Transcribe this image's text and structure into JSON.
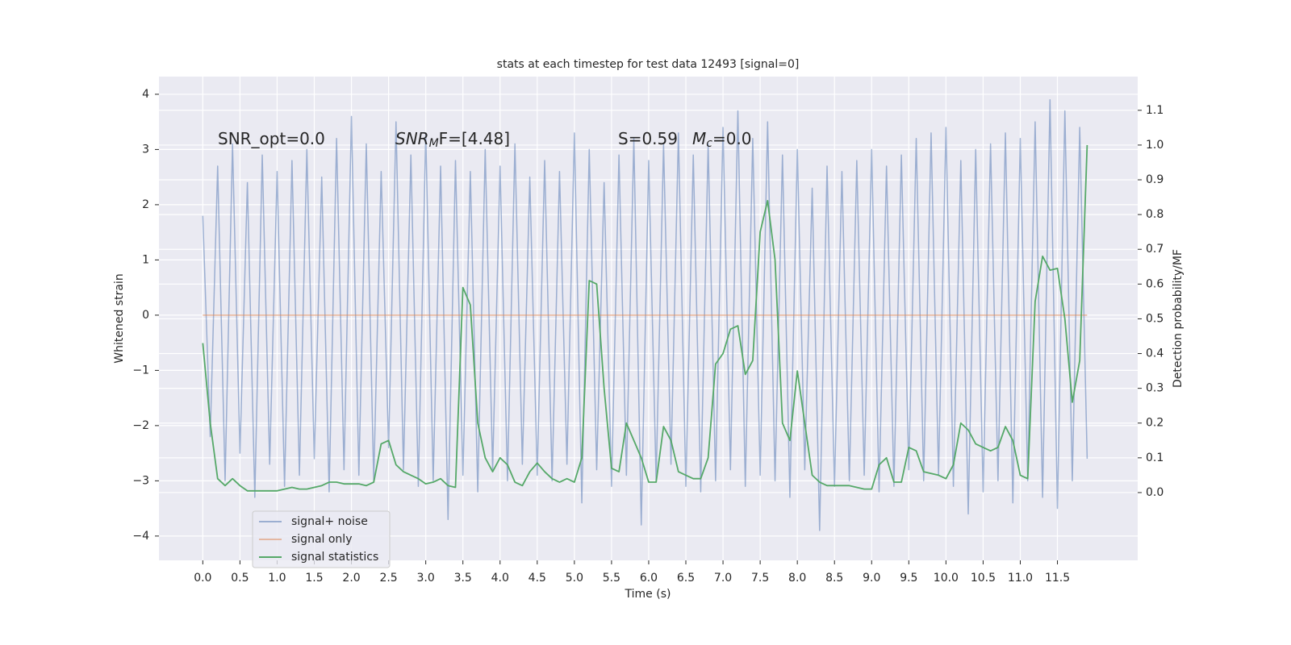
{
  "chart_data": {
    "type": "line",
    "title": "stats at each timestep for test data 12493 [signal=0]",
    "xlabel": "Time (s)",
    "ylabel": "Whitened strain",
    "y2label": "Detection probability/MF",
    "annotations": [
      [
        "SNR_opt=0.0"
      ],
      [
        "SNR",
        "M",
        "F=[4.48]"
      ],
      [
        "S=0.59"
      ],
      [
        "M",
        "c",
        "=0.0"
      ]
    ],
    "x": [
      0.0,
      0.1,
      0.2,
      0.3,
      0.4,
      0.5,
      0.6,
      0.7,
      0.8,
      0.9,
      1.0,
      1.1,
      1.2,
      1.3,
      1.4,
      1.5,
      1.6,
      1.7,
      1.8,
      1.9,
      2.0,
      2.1,
      2.2,
      2.3,
      2.4,
      2.5,
      2.6,
      2.7,
      2.8,
      2.9,
      3.0,
      3.1,
      3.2,
      3.3,
      3.4,
      3.5,
      3.6,
      3.7,
      3.8,
      3.9,
      4.0,
      4.1,
      4.2,
      4.3,
      4.4,
      4.5,
      4.6,
      4.7,
      4.8,
      4.9,
      5.0,
      5.1,
      5.2,
      5.3,
      5.4,
      5.5,
      5.6,
      5.7,
      5.8,
      5.9,
      6.0,
      6.1,
      6.2,
      6.3,
      6.4,
      6.5,
      6.6,
      6.7,
      6.8,
      6.9,
      7.0,
      7.1,
      7.2,
      7.3,
      7.4,
      7.5,
      7.6,
      7.7,
      7.8,
      7.9,
      8.0,
      8.1,
      8.2,
      8.3,
      8.4,
      8.5,
      8.6,
      8.7,
      8.8,
      8.9,
      9.0,
      9.1,
      9.2,
      9.3,
      9.4,
      9.5,
      9.6,
      9.7,
      9.8,
      9.9,
      10.0,
      10.1,
      10.2,
      10.3,
      10.4,
      10.5,
      10.6,
      10.7,
      10.8,
      10.9,
      11.0,
      11.1,
      11.2,
      11.3,
      11.4,
      11.5,
      11.6,
      11.7,
      11.8,
      11.9
    ],
    "series": [
      {
        "name": "signal+ noise",
        "color": "#4c72b0",
        "opacity": 0.5,
        "values": [
          1.8,
          -2.2,
          2.7,
          -3.0,
          3.1,
          -2.5,
          2.4,
          -3.3,
          2.9,
          -2.7,
          2.6,
          -3.1,
          2.8,
          -2.9,
          3.0,
          -2.6,
          2.5,
          -3.2,
          3.2,
          -2.8,
          3.6,
          -2.9,
          3.1,
          -3.0,
          2.6,
          -2.4,
          3.5,
          -2.8,
          2.9,
          -3.1,
          3.3,
          -3.0,
          2.7,
          -3.7,
          2.8,
          -2.9,
          2.6,
          -3.2,
          3.0,
          -2.8,
          2.7,
          -3.0,
          3.1,
          -2.7,
          2.5,
          -2.9,
          2.8,
          -3.0,
          2.6,
          -2.7,
          3.3,
          -3.4,
          3.0,
          -2.8,
          2.4,
          -3.1,
          2.9,
          -2.9,
          3.2,
          -3.8,
          2.8,
          -3.0,
          3.1,
          -2.7,
          3.3,
          -3.1,
          2.9,
          -3.2,
          3.1,
          -3.0,
          3.4,
          -2.8,
          3.7,
          -3.1,
          3.2,
          -2.9,
          3.5,
          -3.0,
          2.9,
          -3.3,
          3.0,
          -2.8,
          2.3,
          -3.9,
          2.7,
          -3.1,
          2.6,
          -3.0,
          2.8,
          -2.9,
          3.0,
          -3.2,
          2.7,
          -3.1,
          2.9,
          -2.8,
          3.2,
          -3.0,
          3.3,
          -2.9,
          3.4,
          -3.1,
          2.8,
          -3.6,
          3.0,
          -3.2,
          3.1,
          -3.0,
          3.3,
          -3.4,
          3.2,
          -3.0,
          3.5,
          -3.3,
          3.9,
          -3.5,
          3.7,
          -3.0,
          3.4,
          -2.6
        ]
      },
      {
        "name": "signal only",
        "color": "#dd8452",
        "opacity": 0.5,
        "values": [
          0,
          0,
          0,
          0,
          0,
          0,
          0,
          0,
          0,
          0,
          0,
          0,
          0,
          0,
          0,
          0,
          0,
          0,
          0,
          0,
          0,
          0,
          0,
          0,
          0,
          0,
          0,
          0,
          0,
          0,
          0,
          0,
          0,
          0,
          0,
          0,
          0,
          0,
          0,
          0,
          0,
          0,
          0,
          0,
          0,
          0,
          0,
          0,
          0,
          0,
          0,
          0,
          0,
          0,
          0,
          0,
          0,
          0,
          0,
          0,
          0,
          0,
          0,
          0,
          0,
          0,
          0,
          0,
          0,
          0,
          0,
          0,
          0,
          0,
          0,
          0,
          0,
          0,
          0,
          0,
          0,
          0,
          0,
          0,
          0,
          0,
          0,
          0,
          0,
          0,
          0,
          0,
          0,
          0,
          0,
          0,
          0,
          0,
          0,
          0,
          0,
          0,
          0,
          0,
          0,
          0,
          0,
          0,
          0,
          0,
          0,
          0,
          0,
          0,
          0,
          0,
          0,
          0,
          0,
          0
        ]
      },
      {
        "name": "signal statistics",
        "color": "#55a868",
        "opacity": 1,
        "axis": "y2",
        "values": [
          0.43,
          0.2,
          0.04,
          0.02,
          0.04,
          0.02,
          0.005,
          0.005,
          0.005,
          0.005,
          0.005,
          0.01,
          0.015,
          0.01,
          0.01,
          0.015,
          0.02,
          0.03,
          0.03,
          0.025,
          0.025,
          0.025,
          0.02,
          0.03,
          0.14,
          0.15,
          0.08,
          0.06,
          0.05,
          0.04,
          0.025,
          0.03,
          0.04,
          0.02,
          0.015,
          0.59,
          0.54,
          0.2,
          0.1,
          0.06,
          0.1,
          0.08,
          0.03,
          0.02,
          0.06,
          0.085,
          0.06,
          0.04,
          0.03,
          0.04,
          0.03,
          0.1,
          0.61,
          0.6,
          0.3,
          0.07,
          0.06,
          0.2,
          0.15,
          0.1,
          0.03,
          0.03,
          0.19,
          0.15,
          0.06,
          0.05,
          0.04,
          0.04,
          0.1,
          0.37,
          0.4,
          0.47,
          0.48,
          0.34,
          0.38,
          0.75,
          0.84,
          0.67,
          0.2,
          0.15,
          0.35,
          0.2,
          0.05,
          0.03,
          0.02,
          0.02,
          0.02,
          0.02,
          0.015,
          0.01,
          0.01,
          0.08,
          0.1,
          0.03,
          0.03,
          0.13,
          0.12,
          0.06,
          0.055,
          0.05,
          0.04,
          0.08,
          0.2,
          0.18,
          0.14,
          0.13,
          0.12,
          0.13,
          0.19,
          0.15,
          0.05,
          0.04,
          0.55,
          0.68,
          0.64,
          0.645,
          0.5,
          0.26,
          0.38,
          1.0
        ]
      }
    ],
    "xlim": [
      -0.59,
      12.58
    ],
    "xticks": [
      {
        "value": 0,
        "label": "0.0"
      },
      {
        "value": 0.5,
        "label": "0.5"
      },
      {
        "value": 1,
        "label": "1.0"
      },
      {
        "value": 1.5,
        "label": "1.5"
      },
      {
        "value": 2,
        "label": "2.0"
      },
      {
        "value": 2.5,
        "label": "2.5"
      },
      {
        "value": 3,
        "label": "3.0"
      },
      {
        "value": 3.5,
        "label": "3.5"
      },
      {
        "value": 4,
        "label": "4.0"
      },
      {
        "value": 4.5,
        "label": "4.5"
      },
      {
        "value": 5,
        "label": "5.0"
      },
      {
        "value": 5.5,
        "label": "5.5"
      },
      {
        "value": 6,
        "label": "6.0"
      },
      {
        "value": 6.5,
        "label": "6.5"
      },
      {
        "value": 7,
        "label": "7.0"
      },
      {
        "value": 7.5,
        "label": "7.5"
      },
      {
        "value": 8,
        "label": "8.0"
      },
      {
        "value": 8.5,
        "label": "8.5"
      },
      {
        "value": 9,
        "label": "9.0"
      },
      {
        "value": 9.5,
        "label": "9.5"
      },
      {
        "value": 10,
        "label": "10.0"
      },
      {
        "value": 10.5,
        "label": "10.5"
      },
      {
        "value": 11,
        "label": "11.0"
      },
      {
        "value": 11.5,
        "label": "11.5"
      }
    ],
    "ylim": [
      -4.44,
      4.32
    ],
    "yticks": [
      {
        "value": -4,
        "label": "−4"
      },
      {
        "value": -3,
        "label": "−3"
      },
      {
        "value": -2,
        "label": "−2"
      },
      {
        "value": -1,
        "label": "−1"
      },
      0,
      1,
      2,
      3,
      4
    ],
    "y2lim": [
      -0.195,
      1.197
    ],
    "y2ticks": [
      {
        "value": 0,
        "label": "0.0"
      },
      {
        "value": 0.1,
        "label": "0.1"
      },
      {
        "value": 0.2,
        "label": "0.2"
      },
      {
        "value": 0.3,
        "label": "0.3"
      },
      {
        "value": 0.4,
        "label": "0.4"
      },
      {
        "value": 0.5,
        "label": "0.5"
      },
      {
        "value": 0.6,
        "label": "0.6"
      },
      {
        "value": 0.7,
        "label": "0.7"
      },
      {
        "value": 0.8,
        "label": "0.8"
      },
      {
        "value": 0.9,
        "label": "0.9"
      },
      {
        "value": 1,
        "label": "1.0"
      },
      {
        "value": 1.1,
        "label": "1.1"
      }
    ],
    "grid": true,
    "legend": "lower left"
  }
}
